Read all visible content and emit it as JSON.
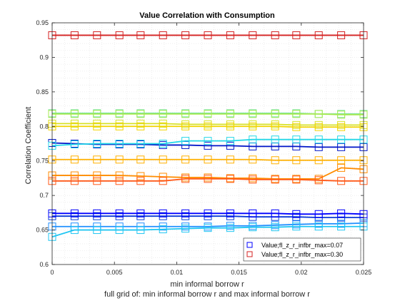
{
  "chart_data": {
    "type": "line",
    "title": "Value Correlation with Consumption",
    "xlabel": "min informal borrow r",
    "ylabel": "Correlation Coefficient",
    "caption": "full grid of: min informal borrow r and max informal borrow r",
    "xlim": [
      0,
      0.025
    ],
    "ylim": [
      0.6,
      0.95
    ],
    "xticks": [
      0,
      0.005,
      0.01,
      0.015,
      0.02,
      0.025
    ],
    "xtick_labels": [
      "0",
      "0.005",
      "0.01",
      "0.015",
      "0.02",
      "0.025"
    ],
    "yticks": [
      0.6,
      0.65,
      0.7,
      0.75,
      0.8,
      0.85,
      0.9,
      0.95
    ],
    "ytick_labels": [
      "0.6",
      "0.65",
      "0.7",
      "0.75",
      "0.8",
      "0.85",
      "0.9",
      "0.95"
    ],
    "grid": "dotted",
    "legend_position": "bottom-right",
    "marker": "square",
    "x": [
      0,
      0.0018,
      0.0036,
      0.0054,
      0.0071,
      0.0089,
      0.0107,
      0.0125,
      0.0143,
      0.0161,
      0.0179,
      0.0196,
      0.0214,
      0.0232,
      0.025
    ],
    "series": [
      {
        "name": "Value;fl_z_r_infbr_max=0.07",
        "color": "#0000ff",
        "values": [
          0.674,
          0.674,
          0.674,
          0.674,
          0.674,
          0.674,
          0.674,
          0.674,
          0.674,
          0.674,
          0.674,
          0.673,
          0.673,
          0.674,
          0.673
        ]
      },
      {
        "name": "Value;fl_z_r_infbr_max=0.30",
        "color": "#d42020",
        "values": [
          0.932,
          0.932,
          0.932,
          0.932,
          0.932,
          0.932,
          0.932,
          0.932,
          0.932,
          0.932,
          0.932,
          0.932,
          0.932,
          0.932,
          0.932
        ]
      },
      {
        "color": "#0015c8",
        "values": [
          0.776,
          0.775,
          0.774,
          0.774,
          0.774,
          0.773,
          0.773,
          0.772,
          0.772,
          0.771,
          0.771,
          0.771,
          0.77,
          0.77,
          0.77
        ]
      },
      {
        "color": "#0b3bd6",
        "values": [
          0.67,
          0.67,
          0.67,
          0.67,
          0.67,
          0.67,
          0.67,
          0.67,
          0.67,
          0.669,
          0.669,
          0.669,
          0.668,
          0.668,
          0.668
        ]
      },
      {
        "color": "#1f8fff",
        "values": [
          0.655,
          0.655,
          0.655,
          0.655,
          0.655,
          0.655,
          0.655,
          0.655,
          0.656,
          0.656,
          0.657,
          0.658,
          0.659,
          0.659,
          0.66
        ]
      },
      {
        "color": "#20c6f2",
        "values": [
          0.64,
          0.65,
          0.65,
          0.65,
          0.65,
          0.651,
          0.652,
          0.653,
          0.653,
          0.654,
          0.654,
          0.655,
          0.655,
          0.655,
          0.655
        ]
      },
      {
        "color": "#24d8e8",
        "values": [
          0.772,
          0.774,
          0.775,
          0.775,
          0.775,
          0.775,
          0.779,
          0.779,
          0.779,
          0.781,
          0.781,
          0.781,
          0.781,
          0.781,
          0.781
        ]
      },
      {
        "color": "#6fe39a",
        "values": [
          0.819,
          0.819,
          0.819,
          0.819,
          0.819,
          0.819,
          0.819,
          0.819,
          0.819,
          0.819,
          0.819,
          0.819,
          0.818,
          0.818,
          0.818
        ]
      },
      {
        "color": "#a9ea52",
        "values": [
          0.818,
          0.818,
          0.818,
          0.818,
          0.818,
          0.818,
          0.818,
          0.818,
          0.818,
          0.818,
          0.818,
          0.818,
          0.818,
          0.817,
          0.817
        ]
      },
      {
        "color": "#d7e228",
        "values": [
          0.804,
          0.804,
          0.804,
          0.804,
          0.804,
          0.804,
          0.803,
          0.803,
          0.803,
          0.803,
          0.803,
          0.802,
          0.802,
          0.802,
          0.802
        ]
      },
      {
        "color": "#f1d400",
        "values": [
          0.8,
          0.8,
          0.8,
          0.8,
          0.8,
          0.8,
          0.8,
          0.8,
          0.8,
          0.8,
          0.8,
          0.799,
          0.799,
          0.799,
          0.799
        ]
      },
      {
        "color": "#ffb000",
        "values": [
          0.752,
          0.752,
          0.752,
          0.752,
          0.752,
          0.752,
          0.752,
          0.752,
          0.752,
          0.752,
          0.751,
          0.751,
          0.751,
          0.751,
          0.751
        ]
      },
      {
        "color": "#ff8c00",
        "values": [
          0.729,
          0.729,
          0.729,
          0.729,
          0.728,
          0.727,
          0.726,
          0.726,
          0.725,
          0.725,
          0.724,
          0.724,
          0.724,
          0.74,
          0.738
        ]
      },
      {
        "color": "#ff5a1a",
        "values": [
          0.721,
          0.721,
          0.721,
          0.721,
          0.721,
          0.721,
          0.724,
          0.724,
          0.724,
          0.723,
          0.723,
          0.723,
          0.722,
          0.721,
          0.721
        ]
      }
    ]
  }
}
